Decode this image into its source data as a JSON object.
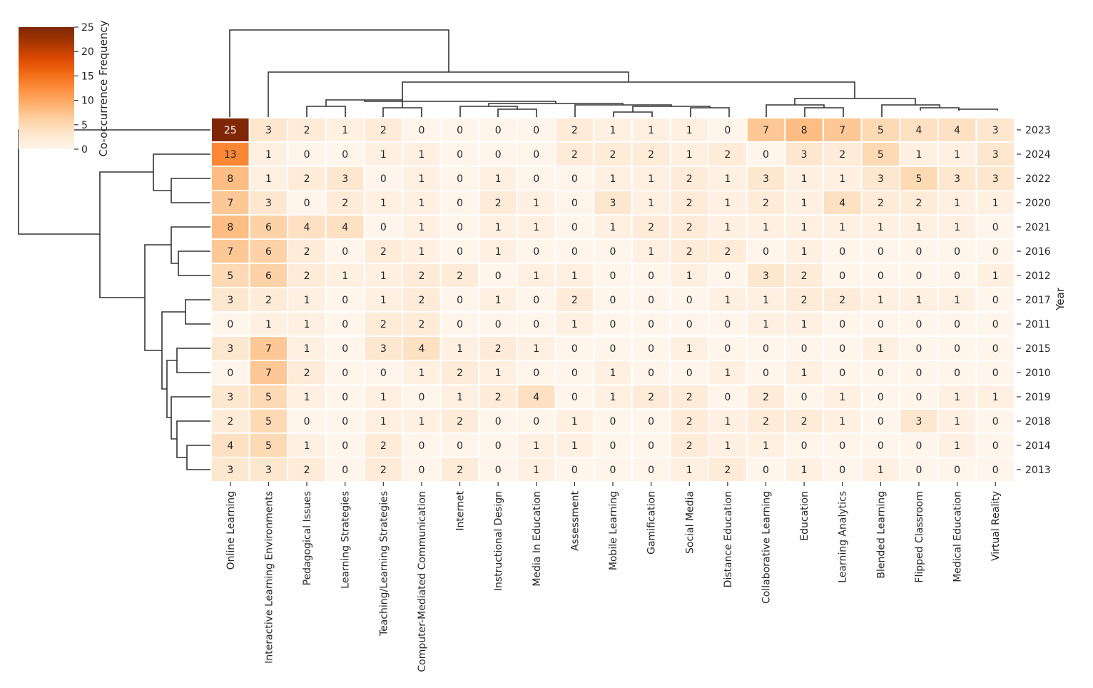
{
  "chart_data": {
    "type": "heatmap",
    "title": "",
    "xlabel": "",
    "ylabel": "Year",
    "colorbar": {
      "label": "Co-occurrence Frequency",
      "ticks": [
        0,
        5,
        10,
        15,
        20,
        25
      ],
      "tick_labels": [
        "0",
        "5",
        "10",
        "15",
        "20",
        "25"
      ],
      "range": [
        0,
        25
      ],
      "colormap": "Oranges",
      "color_low": "#fff5eb",
      "color_high": "#7f2704",
      "placement": "top-left"
    },
    "columns": [
      "Online Learning",
      "Interactive Learning Environments",
      "Pedagogical Issues",
      "Learning Strategies",
      "Teaching/Learning Strategies",
      "Computer-Mediated Communication",
      "Internet",
      "Instructional Design",
      "Media In Education",
      "Assessment",
      "Mobile Learning",
      "Gamification",
      "Social Media",
      "Distance Education",
      "Collaborative Learning",
      "Education",
      "Learning Analytics",
      "Blended Learning",
      "Flipped Classroom",
      "Medical Education",
      "Virtual Reality"
    ],
    "rows": [
      "2023",
      "2024",
      "2022",
      "2020",
      "2021",
      "2016",
      "2012",
      "2017",
      "2011",
      "2015",
      "2010",
      "2019",
      "2018",
      "2014",
      "2013"
    ],
    "values": [
      [
        25,
        3,
        2,
        1,
        2,
        0,
        0,
        0,
        0,
        2,
        1,
        1,
        1,
        0,
        7,
        8,
        7,
        5,
        4,
        4,
        3
      ],
      [
        13,
        1,
        0,
        0,
        1,
        1,
        0,
        0,
        0,
        2,
        2,
        2,
        1,
        2,
        0,
        3,
        2,
        5,
        1,
        1,
        3
      ],
      [
        8,
        1,
        2,
        3,
        0,
        1,
        0,
        1,
        0,
        0,
        1,
        1,
        2,
        1,
        3,
        1,
        1,
        3,
        5,
        3,
        3
      ],
      [
        7,
        3,
        0,
        2,
        1,
        1,
        0,
        2,
        1,
        0,
        3,
        1,
        2,
        1,
        2,
        1,
        4,
        2,
        2,
        1,
        1
      ],
      [
        8,
        6,
        4,
        4,
        0,
        1,
        0,
        1,
        1,
        0,
        1,
        2,
        2,
        1,
        1,
        1,
        1,
        1,
        1,
        1,
        0
      ],
      [
        7,
        6,
        2,
        0,
        2,
        1,
        0,
        1,
        0,
        0,
        0,
        1,
        2,
        2,
        0,
        1,
        0,
        0,
        0,
        0,
        0
      ],
      [
        5,
        6,
        2,
        1,
        1,
        2,
        2,
        0,
        1,
        1,
        0,
        0,
        1,
        0,
        3,
        2,
        0,
        0,
        0,
        0,
        1
      ],
      [
        3,
        2,
        1,
        0,
        1,
        2,
        0,
        1,
        0,
        2,
        0,
        0,
        0,
        1,
        1,
        2,
        2,
        1,
        1,
        1,
        0
      ],
      [
        0,
        1,
        1,
        0,
        2,
        2,
        0,
        0,
        0,
        1,
        0,
        0,
        0,
        0,
        1,
        1,
        0,
        0,
        0,
        0,
        0
      ],
      [
        3,
        7,
        1,
        0,
        3,
        4,
        1,
        2,
        1,
        0,
        0,
        0,
        1,
        0,
        0,
        0,
        0,
        1,
        0,
        0,
        0
      ],
      [
        0,
        7,
        2,
        0,
        0,
        1,
        2,
        1,
        0,
        0,
        1,
        0,
        0,
        1,
        0,
        1,
        0,
        0,
        0,
        0,
        0
      ],
      [
        3,
        5,
        1,
        0,
        1,
        0,
        1,
        2,
        4,
        0,
        1,
        2,
        2,
        0,
        2,
        0,
        1,
        0,
        0,
        1,
        1
      ],
      [
        2,
        5,
        0,
        0,
        1,
        1,
        2,
        0,
        0,
        1,
        0,
        0,
        2,
        1,
        2,
        2,
        1,
        0,
        3,
        1,
        0
      ],
      [
        4,
        5,
        1,
        0,
        2,
        0,
        0,
        0,
        1,
        1,
        0,
        0,
        2,
        1,
        1,
        0,
        0,
        0,
        0,
        1,
        0
      ],
      [
        3,
        3,
        2,
        0,
        2,
        0,
        2,
        0,
        1,
        0,
        0,
        0,
        1,
        2,
        0,
        1,
        0,
        1,
        0,
        0,
        0
      ]
    ],
    "annotated": true,
    "row_dendrogram": true,
    "column_dendrogram": true,
    "grid": false
  }
}
